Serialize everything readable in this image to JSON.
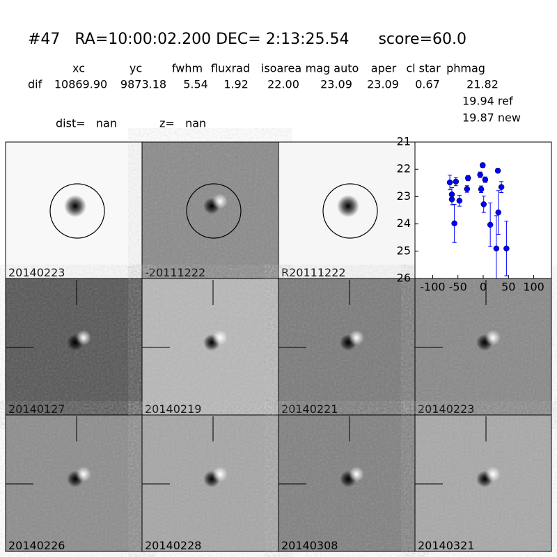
{
  "header": {
    "title": "#47   RA=10:00:02.200 DEC= 2:13:25.54      score=60.0",
    "table": {
      "columns": [
        "xc",
        "yc",
        "fwhm",
        "fluxrad",
        "isoarea",
        "mag auto",
        "aper",
        "cl star",
        "phmag"
      ],
      "row_label": "dif",
      "row": [
        "10869.90",
        "9873.18",
        "5.54",
        "1.92",
        "22.00",
        "23.09",
        "23.09",
        "0.67",
        "21.82"
      ]
    },
    "phmag_extra": [
      "19.94 ref",
      "19.87 new"
    ],
    "dist": "dist=   nan",
    "z": "z=   nan"
  },
  "panels": [
    {
      "label": "20140223",
      "label_color": "#000000"
    },
    {
      "label": "-20111222",
      "label_color": "#000000"
    },
    {
      "label": "R20111222",
      "label_color": "#000000"
    },
    {
      "label": "20140127",
      "label_color": "#000000"
    },
    {
      "label": "20140219",
      "label_color": "#000000"
    },
    {
      "label": "20140221",
      "label_color": "#000000"
    },
    {
      "label": "20140223",
      "label_color": "#ff0000"
    },
    {
      "label": "20140226",
      "label_color": "#000000"
    },
    {
      "label": "20140228",
      "label_color": "#000000"
    },
    {
      "label": "20140308",
      "label_color": "#000000"
    },
    {
      "label": "20140321",
      "label_color": "#000000"
    }
  ],
  "chart_data": {
    "type": "scatter",
    "x": [
      -66,
      -62,
      -62,
      -57,
      -54,
      -47,
      -32,
      -30,
      -6,
      -4,
      -1,
      1,
      4,
      14,
      26,
      29,
      30,
      36,
      46
    ],
    "series": [
      {
        "color": "#0000ff",
        "values": [
          22.48,
          22.92,
          23.1,
          23.98,
          22.45,
          23.15,
          22.72,
          22.32,
          22.2,
          22.73,
          21.85,
          23.28,
          22.38,
          24.03,
          24.9,
          22.05,
          23.58,
          22.65,
          24.9
        ],
        "errors": [
          0.27,
          0.25,
          0.2,
          0.7,
          0.15,
          0.2,
          0.12,
          0.1,
          0.1,
          0.12,
          0.08,
          0.3,
          0.1,
          0.8,
          1.2,
          0.08,
          0.8,
          0.2,
          1.0
        ]
      }
    ],
    "xlim": [
      -135,
      135
    ],
    "ylim": [
      26,
      21
    ],
    "xticks": [
      -100,
      -50,
      0,
      50,
      100
    ],
    "yticks": [
      21,
      22,
      23,
      24,
      25,
      26
    ]
  }
}
